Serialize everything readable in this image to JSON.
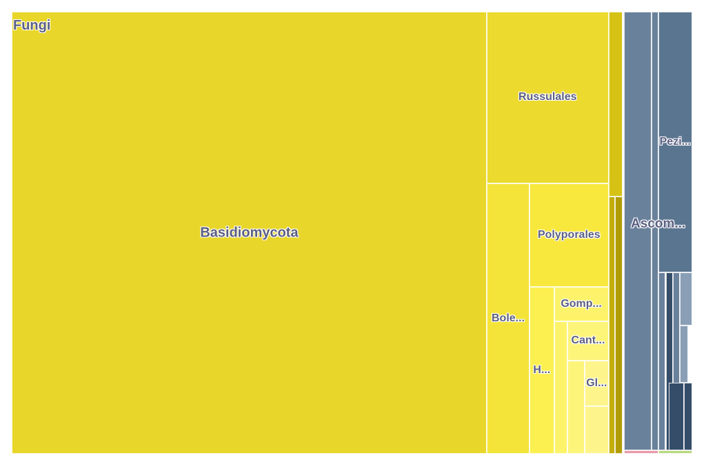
{
  "chart_data": {
    "type": "treemap",
    "title": "",
    "root": "Fungi",
    "colors": {
      "basidiomycota": "#e8d62a",
      "russulales": "#ecda2f",
      "boletales": "#f4e43a",
      "polyporales": "#f8e83e",
      "hymenochaetales": "#fcf050",
      "gomphales": "#fdf36a",
      "cantharellales": "#fdf47a",
      "gloeophyllales": "#fdf58c",
      "basidio_minor_1": "#d6c214",
      "basidio_minor_2": "#c2ad0a",
      "basidio_minor_3": "#b29c06",
      "ascomycota": "#6a819b",
      "pezizales": "#5a7590",
      "asco_dark": "#354d69",
      "asco_light": "#8a9fb5",
      "other_pink": "#e89aaa",
      "other_green": "#b8d880",
      "text": "#5b5f82"
    },
    "nodes": [
      {
        "id": "basidiomycota",
        "label": "Basidiomycota",
        "color_key": "basidiomycota",
        "x0": 0,
        "y0": 0,
        "x1": 69.8,
        "y1": 100
      },
      {
        "id": "russulales",
        "label": "Russulales",
        "color_key": "russulales",
        "x0": 69.8,
        "y0": 0,
        "x1": 87.7,
        "y1": 38.8
      },
      {
        "id": "boletales",
        "label": "Bole...",
        "color_key": "boletales",
        "x0": 69.8,
        "y0": 38.8,
        "x1": 76.1,
        "y1": 100
      },
      {
        "id": "polyporales",
        "label": "Polyporales",
        "color_key": "polyporales",
        "x0": 76.1,
        "y0": 38.8,
        "x1": 87.7,
        "y1": 62.3
      },
      {
        "id": "hymenochaetales",
        "label": "H...",
        "color_key": "hymenochaetales",
        "x0": 76.1,
        "y0": 62.3,
        "x1": 79.7,
        "y1": 100
      },
      {
        "id": "gomphales",
        "label": "Gomp...",
        "color_key": "gomphales",
        "x0": 79.7,
        "y0": 62.3,
        "x1": 87.7,
        "y1": 70.0
      },
      {
        "id": "cantharellales",
        "label": "Cant...",
        "color_key": "cantharellales",
        "x0": 81.7,
        "y0": 70.0,
        "x1": 87.7,
        "y1": 78.9
      },
      {
        "id": "gloeophyllales",
        "label": "Gl...",
        "color_key": "gloeophyllales",
        "x0": 84.2,
        "y0": 78.9,
        "x1": 87.7,
        "y1": 89.3
      },
      {
        "id": "basidio-minor-a",
        "label": "",
        "color_key": "gomphales",
        "x0": 79.7,
        "y0": 70.0,
        "x1": 81.7,
        "y1": 100
      },
      {
        "id": "basidio-minor-b",
        "label": "",
        "color_key": "cantharellales",
        "x0": 81.7,
        "y0": 78.9,
        "x1": 84.2,
        "y1": 100
      },
      {
        "id": "basidio-minor-c",
        "label": "",
        "color_key": "gloeophyllales",
        "x0": 84.2,
        "y0": 89.3,
        "x1": 87.7,
        "y1": 100
      },
      {
        "id": "basidio-minor-1",
        "label": "",
        "color_key": "basidio_minor_1",
        "x0": 87.7,
        "y0": 0,
        "x1": 89.8,
        "y1": 41.8
      },
      {
        "id": "basidio-minor-2",
        "label": "",
        "color_key": "basidio_minor_2",
        "x0": 87.7,
        "y0": 41.8,
        "x1": 88.7,
        "y1": 100
      },
      {
        "id": "basidio-minor-3",
        "label": "",
        "color_key": "basidio_minor_3",
        "x0": 88.7,
        "y0": 41.8,
        "x1": 89.8,
        "y1": 100
      },
      {
        "id": "asco-block-a",
        "label": "",
        "color_key": "ascomycota",
        "x0": 90.0,
        "y0": 0,
        "x1": 94.0,
        "y1": 99.2
      },
      {
        "id": "asco-block-b",
        "label": "",
        "color_key": "ascomycota",
        "x0": 94.0,
        "y0": 0,
        "x1": 95.0,
        "y1": 99.2
      },
      {
        "id": "pezizales",
        "label": "Pezi...",
        "color_key": "pezizales",
        "x0": 95.0,
        "y0": 0,
        "x1": 100,
        "y1": 59.0
      },
      {
        "id": "asco-sub-1",
        "label": "",
        "color_key": "ascomycota",
        "x0": 95.0,
        "y0": 59.0,
        "x1": 96.1,
        "y1": 99.2
      },
      {
        "id": "asco-sub-2",
        "label": "",
        "color_key": "asco_dark",
        "x0": 96.1,
        "y0": 59.0,
        "x1": 97.2,
        "y1": 99.2
      },
      {
        "id": "asco-sub-3",
        "label": "",
        "color_key": "ascomycota",
        "x0": 97.2,
        "y0": 59.0,
        "x1": 98.2,
        "y1": 99.2
      },
      {
        "id": "asco-sub-4",
        "label": "",
        "color_key": "asco_light",
        "x0": 98.2,
        "y0": 59.0,
        "x1": 100,
        "y1": 71.0
      },
      {
        "id": "asco-sub-5",
        "label": "",
        "color_key": "asco_light",
        "x0": 98.2,
        "y0": 71.0,
        "x1": 99.4,
        "y1": 84.0
      },
      {
        "id": "asco-sub-6",
        "label": "",
        "color_key": "asco_dark",
        "x0": 96.6,
        "y0": 84.0,
        "x1": 98.8,
        "y1": 99.2
      },
      {
        "id": "asco-sub-7",
        "label": "",
        "color_key": "asco_dark",
        "x0": 98.8,
        "y0": 84.0,
        "x1": 100,
        "y1": 99.2
      },
      {
        "id": "asco-overlay",
        "label": "Ascom...",
        "color_key": "ascomycota",
        "x0": 90.0,
        "y0": 48.0,
        "x1": 90.0,
        "y1": 48.0
      },
      {
        "id": "other-pink",
        "label": "",
        "color_key": "other_pink",
        "x0": 90.0,
        "y0": 99.2,
        "x1": 95.0,
        "y1": 100
      },
      {
        "id": "other-green",
        "label": "",
        "color_key": "other_green",
        "x0": 95.0,
        "y0": 99.2,
        "x1": 100,
        "y1": 100
      }
    ]
  }
}
